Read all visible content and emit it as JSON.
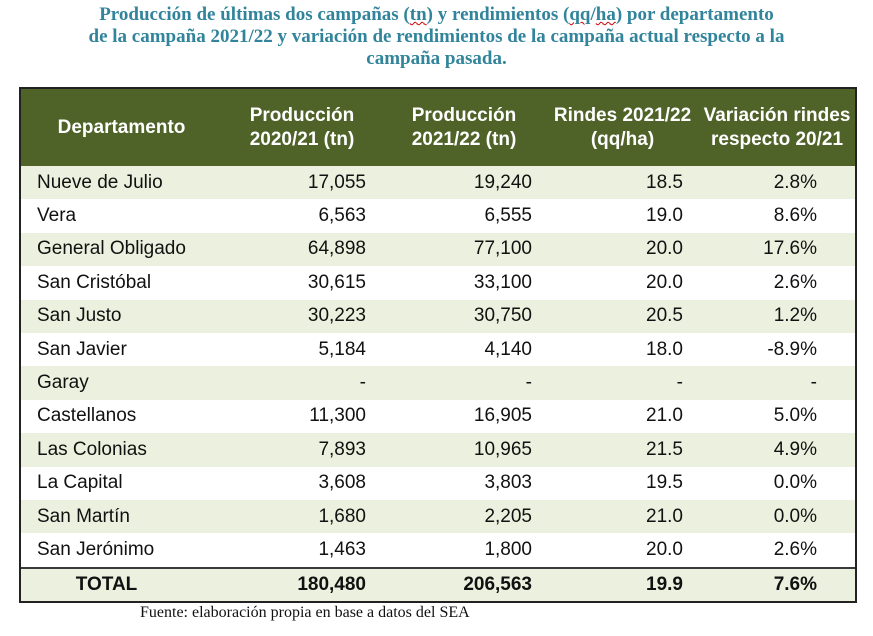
{
  "title": {
    "line1_a": "Producción de últimas dos campañas (",
    "line1_tn": "tn",
    "line1_b": ") y rendimientos (",
    "line1_qq": "qq",
    "line1_slash": "/",
    "line1_ha": "ha",
    "line1_c": ") por departamento",
    "line2": "de la campaña 2021/22 y variación de rendimientos de la campaña actual respecto a la",
    "line3": "campaña pasada."
  },
  "colors": {
    "header_bg": "#4f6228",
    "stripe": "#ebf1de",
    "title": "#31849B"
  },
  "table": {
    "headers": [
      "Departamento",
      "Producción 2020/21 (tn)",
      "Producción 2021/22 (tn)",
      "Rindes 2021/22 (qq/ha)",
      "Variación rindes respecto 20/21"
    ],
    "rows": [
      [
        "Nueve de Julio",
        "17,055",
        "19,240",
        "18.5",
        "2.8%"
      ],
      [
        "Vera",
        "6,563",
        "6,555",
        "19.0",
        "8.6%"
      ],
      [
        "General Obligado",
        "64,898",
        "77,100",
        "20.0",
        "17.6%"
      ],
      [
        "San Cristóbal",
        "30,615",
        "33,100",
        "20.0",
        "2.6%"
      ],
      [
        "San Justo",
        "30,223",
        "30,750",
        "20.5",
        "1.2%"
      ],
      [
        "San Javier",
        "5,184",
        "4,140",
        "18.0",
        "-8.9%"
      ],
      [
        "Garay",
        "-",
        "-",
        "-",
        "-"
      ],
      [
        "Castellanos",
        "11,300",
        "16,905",
        "21.0",
        "5.0%"
      ],
      [
        "Las Colonias",
        "7,893",
        "10,965",
        "21.5",
        "4.9%"
      ],
      [
        "La Capital",
        "3,608",
        "3,803",
        "19.5",
        "0.0%"
      ],
      [
        "San Martín",
        "1,680",
        "2,205",
        "21.0",
        "0.0%"
      ],
      [
        "San Jerónimo",
        "1,463",
        "1,800",
        "20.0",
        "2.6%"
      ]
    ],
    "total": [
      "TOTAL",
      "180,480",
      "206,563",
      "19.9",
      "7.6%"
    ]
  },
  "source": "Fuente: elaboración propia en base a datos del SEA"
}
